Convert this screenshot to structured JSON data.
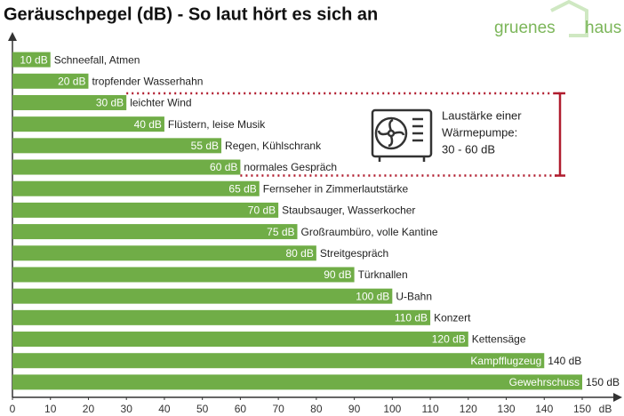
{
  "chart_data": {
    "type": "hbar",
    "title": "Geräuschpegel (dB) - So laut hört es sich an",
    "categories": [
      "Schneefall, Atmen",
      "tropfender Wasserhahn",
      "leichter Wind",
      "Flüstern, leise Musik",
      "Regen, Kühlschrank",
      "normales Gespräch",
      "Fernseher in Zimmerlautstärke",
      "Staubsauger, Wasserkocher",
      "Großraumbüro, volle Kantine",
      "Streitgespräch",
      "Türknallen",
      "U-Bahn",
      "Konzert",
      "Kettensäge",
      "Kampfflugzeug",
      "Gewehrschuss"
    ],
    "values": [
      10,
      20,
      30,
      40,
      55,
      60,
      65,
      70,
      75,
      80,
      90,
      100,
      110,
      120,
      140,
      150
    ],
    "value_labels": [
      "10 dB",
      "20 dB",
      "30 dB",
      "40 dB",
      "55 dB",
      "60 dB",
      "65 dB",
      "70 dB",
      "75 dB",
      "80 dB",
      "90 dB",
      "100 dB",
      "110 dB",
      "120 dB",
      "140 dB",
      "150 dB"
    ],
    "inside_category_indices": [
      14,
      15
    ],
    "color": "#70ad47",
    "xlabel": "dB",
    "xlim": [
      0,
      160
    ],
    "xticks": [
      0,
      10,
      20,
      30,
      40,
      50,
      60,
      70,
      80,
      90,
      100,
      110,
      120,
      130,
      140,
      150
    ],
    "highlight_indices": [
      2,
      5
    ],
    "highlight_color": "#b01c2e",
    "annotation": [
      "Laustärke einer",
      "Wärmepumpe:",
      "30 - 60 dB"
    ],
    "logo": [
      "gruenes",
      "haus"
    ],
    "logo_color": "#7cb65a"
  }
}
